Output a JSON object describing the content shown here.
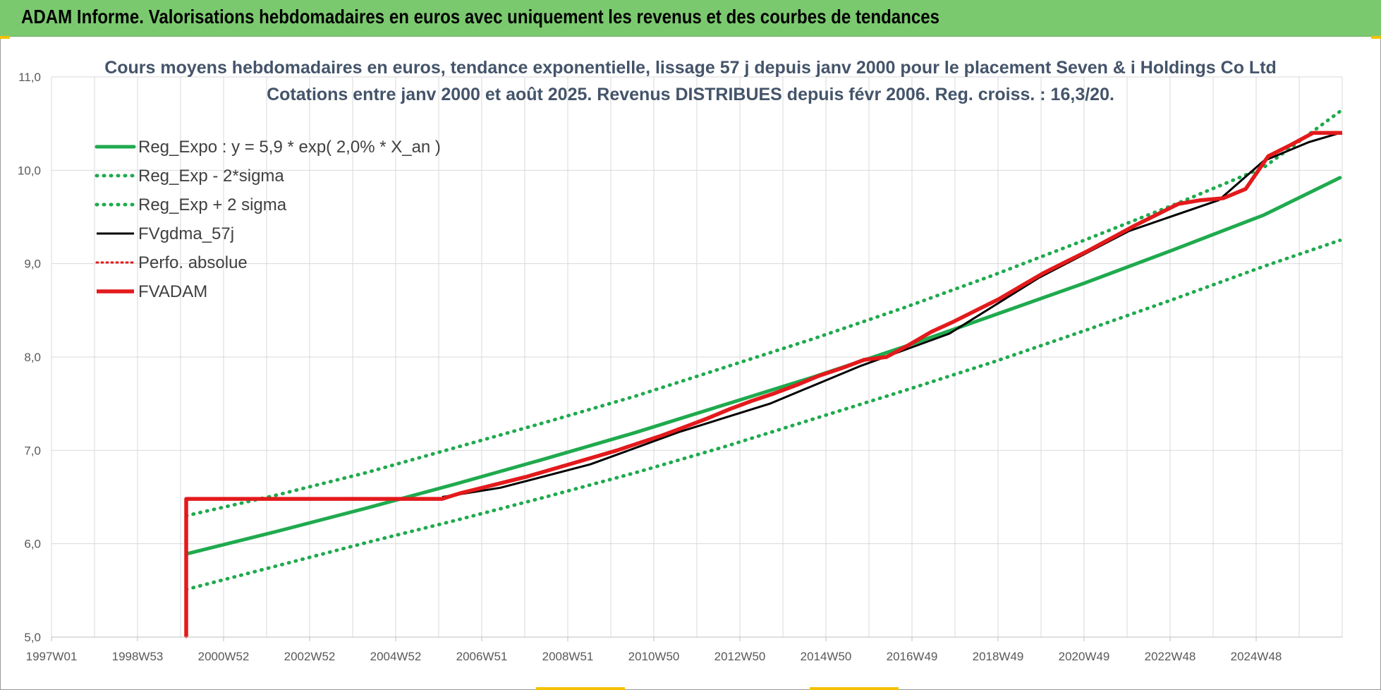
{
  "banner": {
    "title": "ADAM Informe. Valorisations hebdomadaires en euros avec uniquement les revenus et des courbes de tendances"
  },
  "chart_data": {
    "type": "line",
    "title_line1": "Cours moyens hebdomadaires en euros, tendance exponentielle, lissage 57 j depuis janv 2000  pour le placement Seven & i Holdings Co Ltd",
    "title_line2": "Cotations entre janv 2000 et août 2025.  Revenus DISTRIBUES depuis févr 2006.  Reg. croiss. : 16,3/20.",
    "xlabel": "",
    "ylabel": "",
    "x_tick_labels": [
      "1997W01",
      "1998W53",
      "2000W52",
      "2002W52",
      "2004W52",
      "2006W51",
      "2008W51",
      "2010W50",
      "2012W50",
      "2014W50",
      "2016W49",
      "2018W49",
      "2020W49",
      "2022W48",
      "2024W48"
    ],
    "x_range": [
      1997.0,
      2025.75
    ],
    "ylim": [
      5.0,
      11.0
    ],
    "y_ticks": [
      "5,0",
      "6,0",
      "7,0",
      "8,0",
      "9,0",
      "10,0",
      "11,0"
    ],
    "grid": true,
    "legend_position": "top-left",
    "series": [
      {
        "name": "Reg_Expo : y = 5,9 * exp( 2,0% *  X_an )",
        "color": "#1faa4e",
        "style": "solid",
        "x": [
          2000.0,
          2002.0,
          2004.0,
          2006.0,
          2008.0,
          2010.0,
          2012.0,
          2014.0,
          2016.0,
          2018.0,
          2020.0,
          2022.0,
          2024.0,
          2025.7
        ],
        "values": [
          5.89,
          6.13,
          6.38,
          6.64,
          6.91,
          7.19,
          7.49,
          7.79,
          8.11,
          8.45,
          8.79,
          9.15,
          9.52,
          9.92
        ]
      },
      {
        "name": "Reg_Exp - 2*sigma",
        "color": "#1faa4e",
        "style": "dotted",
        "x": [
          2000.0,
          2002.0,
          2004.0,
          2006.0,
          2008.0,
          2010.0,
          2012.0,
          2014.0,
          2016.0,
          2018.0,
          2020.0,
          2022.0,
          2024.0,
          2025.7
        ],
        "values": [
          5.51,
          5.76,
          6.01,
          6.25,
          6.5,
          6.76,
          7.04,
          7.34,
          7.64,
          7.95,
          8.28,
          8.62,
          8.97,
          9.25
        ]
      },
      {
        "name": "Reg_Exp + 2 sigma",
        "color": "#1faa4e",
        "style": "dotted",
        "x": [
          2000.0,
          2002.0,
          2004.0,
          2006.0,
          2008.0,
          2010.0,
          2012.0,
          2014.0,
          2016.0,
          2018.0,
          2020.0,
          2022.0,
          2024.0,
          2025.7
        ],
        "values": [
          6.3,
          6.52,
          6.76,
          7.03,
          7.3,
          7.58,
          7.89,
          8.2,
          8.53,
          8.88,
          9.25,
          9.63,
          10.03,
          10.63
        ]
      },
      {
        "name": "FVgdma_57j",
        "color": "#000000",
        "style": "solid",
        "x": [
          2005.7,
          2007.0,
          2009.0,
          2011.0,
          2013.0,
          2015.0,
          2017.0,
          2019.0,
          2021.0,
          2023.0,
          2024.0,
          2025.0,
          2025.7
        ],
        "values": [
          6.5,
          6.6,
          6.85,
          7.2,
          7.5,
          7.9,
          8.25,
          8.85,
          9.35,
          9.68,
          10.1,
          10.3,
          10.4
        ]
      },
      {
        "name": "Perfo. absolue",
        "color": "#e31a1c",
        "style": "dotted",
        "x": [
          2000.0,
          2000.0,
          2005.7
        ],
        "values": [
          5.0,
          6.48,
          6.48
        ]
      },
      {
        "name": "FVADAM",
        "color": "#e31a1c",
        "style": "solid",
        "x": [
          2000.0,
          2000.0,
          2005.7,
          2006.1,
          2006.6,
          2007.1,
          2007.6,
          2008.1,
          2008.6,
          2009.1,
          2009.6,
          2010.1,
          2010.6,
          2011.1,
          2011.6,
          2012.1,
          2012.6,
          2013.1,
          2013.6,
          2014.1,
          2014.6,
          2015.1,
          2015.6,
          2016.1,
          2016.6,
          2017.1,
          2017.6,
          2018.1,
          2018.6,
          2019.1,
          2019.6,
          2020.1,
          2020.6,
          2021.1,
          2021.6,
          2022.1,
          2022.6,
          2023.1,
          2023.6,
          2024.1,
          2024.6,
          2025.1,
          2025.75
        ],
        "values": [
          5.0,
          6.48,
          6.48,
          6.54,
          6.6,
          6.66,
          6.72,
          6.79,
          6.86,
          6.93,
          7.0,
          7.08,
          7.16,
          7.25,
          7.34,
          7.44,
          7.53,
          7.61,
          7.7,
          7.8,
          7.88,
          7.97,
          8.0,
          8.13,
          8.27,
          8.38,
          8.5,
          8.62,
          8.76,
          8.9,
          9.02,
          9.14,
          9.27,
          9.4,
          9.52,
          9.64,
          9.68,
          9.7,
          9.8,
          10.15,
          10.27,
          10.4,
          10.4
        ]
      }
    ]
  }
}
